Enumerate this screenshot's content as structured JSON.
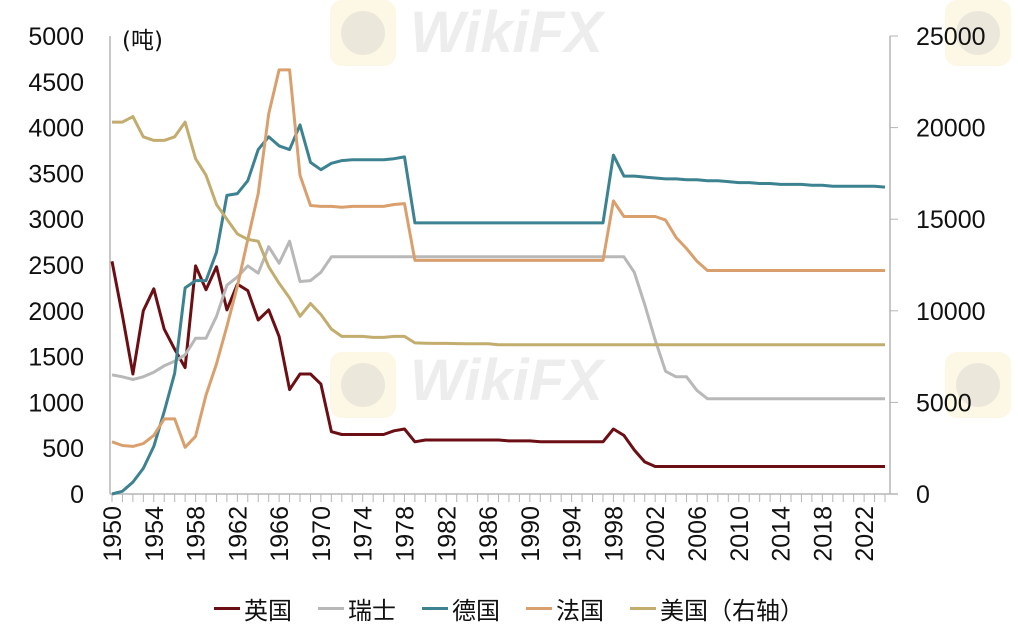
{
  "chart_data": {
    "type": "line",
    "title": "",
    "unit_label": "(吨)",
    "xlabel": "",
    "ylabel": "",
    "xlim": [
      1950,
      2024
    ],
    "ylim_left": [
      0,
      5000
    ],
    "ylim_right": [
      0,
      25000
    ],
    "left_ticks": [
      0,
      500,
      1000,
      1500,
      2000,
      2500,
      3000,
      3500,
      4000,
      4500,
      5000
    ],
    "right_ticks": [
      0,
      5000,
      10000,
      15000,
      20000,
      25000
    ],
    "x_tick_labels": [
      "1950",
      "1954",
      "1958",
      "1962",
      "1966",
      "1970",
      "1974",
      "1978",
      "1982",
      "1986",
      "1990",
      "1994",
      "1998",
      "2002",
      "2006",
      "2010",
      "2014",
      "2018",
      "2022"
    ],
    "legend_position": "bottom",
    "grid": false,
    "x": [
      1950,
      1951,
      1952,
      1953,
      1954,
      1955,
      1956,
      1957,
      1958,
      1959,
      1960,
      1961,
      1962,
      1963,
      1964,
      1965,
      1966,
      1967,
      1968,
      1969,
      1970,
      1971,
      1972,
      1973,
      1974,
      1975,
      1976,
      1977,
      1978,
      1979,
      1980,
      1981,
      1982,
      1983,
      1984,
      1985,
      1986,
      1987,
      1988,
      1989,
      1990,
      1991,
      1992,
      1993,
      1994,
      1995,
      1996,
      1997,
      1998,
      1999,
      2000,
      2001,
      2002,
      2003,
      2004,
      2005,
      2006,
      2007,
      2008,
      2009,
      2010,
      2011,
      2012,
      2013,
      2014,
      2015,
      2016,
      2017,
      2018,
      2019,
      2020,
      2021,
      2022,
      2023,
      2024
    ],
    "series": [
      {
        "name": "英国",
        "axis": "left",
        "color": "#6b0f14",
        "values": [
          2540,
          1950,
          1310,
          2000,
          2240,
          1800,
          1580,
          1380,
          2490,
          2230,
          2480,
          2010,
          2290,
          2220,
          1900,
          2010,
          1720,
          1140,
          1310,
          1310,
          1200,
          680,
          650,
          650,
          650,
          650,
          650,
          690,
          710,
          570,
          590,
          590,
          590,
          590,
          590,
          590,
          590,
          590,
          580,
          580,
          580,
          570,
          570,
          570,
          570,
          570,
          570,
          570,
          710,
          640,
          480,
          350,
          300,
          300,
          300,
          300,
          300,
          300,
          300,
          300,
          300,
          300,
          300,
          300,
          300,
          300,
          300,
          300,
          300,
          300,
          300,
          300,
          300,
          300,
          300
        ]
      },
      {
        "name": "瑞士",
        "axis": "left",
        "color": "#b8b8b8",
        "values": [
          1300,
          1280,
          1250,
          1280,
          1330,
          1400,
          1450,
          1520,
          1700,
          1700,
          1940,
          2280,
          2370,
          2490,
          2410,
          2700,
          2520,
          2760,
          2320,
          2330,
          2420,
          2590,
          2590,
          2590,
          2590,
          2590,
          2590,
          2590,
          2590,
          2590,
          2590,
          2590,
          2590,
          2590,
          2590,
          2590,
          2590,
          2590,
          2590,
          2590,
          2590,
          2590,
          2590,
          2590,
          2590,
          2590,
          2590,
          2590,
          2590,
          2590,
          2420,
          2070,
          1680,
          1340,
          1280,
          1280,
          1130,
          1040,
          1040,
          1040,
          1040,
          1040,
          1040,
          1040,
          1040,
          1040,
          1040,
          1040,
          1040,
          1040,
          1040,
          1040,
          1040,
          1040,
          1040
        ]
      },
      {
        "name": "德国",
        "axis": "left",
        "color": "#3d8291",
        "values": [
          0,
          30,
          130,
          280,
          520,
          900,
          1320,
          2250,
          2330,
          2330,
          2640,
          3260,
          3280,
          3420,
          3760,
          3900,
          3800,
          3760,
          4030,
          3620,
          3540,
          3610,
          3640,
          3650,
          3650,
          3650,
          3650,
          3660,
          3680,
          2960,
          2960,
          2960,
          2960,
          2960,
          2960,
          2960,
          2960,
          2960,
          2960,
          2960,
          2960,
          2960,
          2960,
          2960,
          2960,
          2960,
          2960,
          2960,
          3700,
          3470,
          3470,
          3460,
          3450,
          3440,
          3440,
          3430,
          3430,
          3420,
          3420,
          3410,
          3400,
          3400,
          3390,
          3390,
          3380,
          3380,
          3380,
          3370,
          3370,
          3360,
          3360,
          3360,
          3360,
          3360,
          3350
        ]
      },
      {
        "name": "法国",
        "axis": "left",
        "color": "#d9a06e",
        "values": [
          570,
          530,
          520,
          550,
          640,
          820,
          820,
          510,
          630,
          1080,
          1420,
          1830,
          2270,
          2780,
          3280,
          4150,
          4630,
          4630,
          3480,
          3150,
          3140,
          3140,
          3130,
          3140,
          3140,
          3140,
          3140,
          3160,
          3170,
          2550,
          2550,
          2550,
          2550,
          2550,
          2550,
          2550,
          2550,
          2550,
          2550,
          2550,
          2550,
          2550,
          2550,
          2550,
          2550,
          2550,
          2550,
          2550,
          3200,
          3030,
          3030,
          3030,
          3030,
          2990,
          2800,
          2680,
          2540,
          2440,
          2440,
          2440,
          2440,
          2440,
          2440,
          2440,
          2440,
          2440,
          2440,
          2440,
          2440,
          2440,
          2440,
          2440,
          2440,
          2440,
          2440
        ]
      },
      {
        "name": "美国（右轴）",
        "axis": "right",
        "color": "#c2ad6e",
        "values": [
          20300,
          20300,
          20600,
          19500,
          19300,
          19300,
          19500,
          20300,
          18300,
          17400,
          15800,
          15000,
          14200,
          13900,
          13800,
          12400,
          11500,
          10700,
          9700,
          10400,
          9800,
          9000,
          8600,
          8600,
          8600,
          8550,
          8550,
          8600,
          8600,
          8250,
          8230,
          8220,
          8220,
          8210,
          8200,
          8200,
          8200,
          8150,
          8150,
          8150,
          8150,
          8150,
          8150,
          8150,
          8150,
          8150,
          8150,
          8150,
          8150,
          8150,
          8150,
          8150,
          8150,
          8150,
          8150,
          8150,
          8150,
          8150,
          8150,
          8150,
          8150,
          8150,
          8150,
          8150,
          8150,
          8150,
          8150,
          8150,
          8150,
          8150,
          8150,
          8150,
          8150,
          8150,
          8150
        ]
      }
    ]
  },
  "legend": [
    {
      "label": "英国",
      "color": "#6b0f14"
    },
    {
      "label": "瑞士",
      "color": "#b8b8b8"
    },
    {
      "label": "德国",
      "color": "#3d8291"
    },
    {
      "label": "法国",
      "color": "#d9a06e"
    },
    {
      "label": "美国（右轴）",
      "color": "#c2ad6e"
    }
  ],
  "watermark": {
    "text": "WikiFX"
  }
}
